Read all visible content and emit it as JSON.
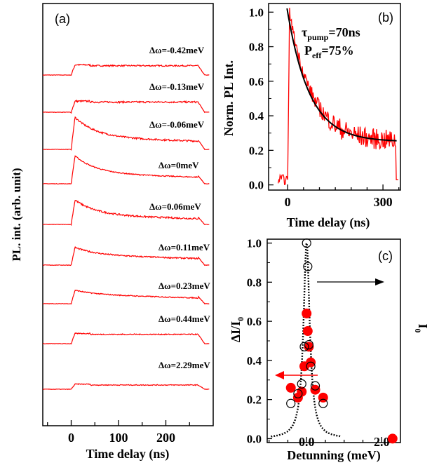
{
  "colors": {
    "trace": "#ff0000",
    "fit": "#000000",
    "axis": "#000000",
    "marker_fill": "#ff0000"
  },
  "chart_data": [
    {
      "panel_label": "(a)",
      "type": "line",
      "xlabel": "Time delay (ns)",
      "ylabel": "PL. int. (arb. unit)",
      "xlim": [
        -60,
        300
      ],
      "xticks": [
        0,
        100,
        200
      ],
      "xticklabels": [
        "0",
        "100",
        "200"
      ],
      "series": [
        {
          "label": "Δω=-0.42meV",
          "shape": "flat",
          "amp": 0.55,
          "noise": 0.08
        },
        {
          "label": "Δω=-0.13meV",
          "shape": "flat",
          "amp": 0.6,
          "noise": 0.1
        },
        {
          "label": "Δω=-0.06meV",
          "shape": "peak",
          "amp": 0.7,
          "peak": 1.9,
          "noise": 0.1
        },
        {
          "label": "Δω=0meV",
          "shape": "peak",
          "amp": 0.6,
          "peak": 1.65,
          "noise": 0.06
        },
        {
          "label": "Δω=0.06meV",
          "shape": "peak",
          "amp": 0.55,
          "peak": 1.45,
          "noise": 0.1
        },
        {
          "label": "Δω=0.11meV",
          "shape": "peak",
          "amp": 0.6,
          "peak": 1.05,
          "noise": 0.08
        },
        {
          "label": "Δω=0.23meV",
          "shape": "peak",
          "amp": 0.55,
          "peak": 0.8,
          "noise": 0.06
        },
        {
          "label": "Δω=0.44meV",
          "shape": "flat",
          "amp": 0.55,
          "noise": 0.06
        },
        {
          "label": "Δω=2.29meV",
          "shape": "flat",
          "amp": 0.25,
          "noise": 0.05
        }
      ]
    },
    {
      "panel_label": "(b)",
      "type": "line",
      "xlabel": "Time delay (ns)",
      "ylabel": "Norm. PL Int.",
      "xlim": [
        -60,
        355
      ],
      "ylim": [
        -0.03,
        1.05
      ],
      "xticks": [
        0,
        300
      ],
      "xticklabels": [
        "0",
        "300"
      ],
      "yticks": [
        0.0,
        0.2,
        0.4,
        0.6,
        0.8,
        1.0
      ],
      "yticklabels": [
        "0.0",
        "0.2",
        "0.4",
        "0.6",
        "0.8",
        "1.0"
      ],
      "annotation_tau": "τ",
      "annotation_tau_sub": "pump",
      "annotation_tau_val": "=70ns",
      "annotation_p": "P",
      "annotation_p_sub": "eff",
      "annotation_p_val": "=75%",
      "fit": {
        "offset": 0.25,
        "amp": 0.75,
        "tau_ns": 70
      },
      "trace": {
        "start_ns": 0,
        "end_ns": 340,
        "baseline": 0.03
      }
    },
    {
      "panel_label": "(c)",
      "type": "scatter",
      "xlabel": "Detunning (meV)",
      "ylabel": "ΔI/I",
      "ylabel_sub": "0",
      "right_ylabel": "I",
      "right_ylabel_sub": "0",
      "xlim": [
        -1.05,
        2.5
      ],
      "ylim": [
        -0.02,
        1.02
      ],
      "xticks": [
        0.0,
        2.0
      ],
      "xticklabels": [
        "0.0",
        "2.0"
      ],
      "yticks": [
        0.0,
        0.2,
        0.4,
        0.6,
        0.8,
        1.0
      ],
      "yticklabels": [
        "0.0",
        "0.2",
        "0.4",
        "0.6",
        "0.8",
        "1.0"
      ],
      "lorentz_width_meV": 0.1,
      "filled_points": [
        {
          "x": -0.42,
          "y": 0.26
        },
        {
          "x": -0.23,
          "y": 0.21
        },
        {
          "x": -0.13,
          "y": 0.24
        },
        {
          "x": -0.06,
          "y": 0.37
        },
        {
          "x": 0.0,
          "y": 0.64
        },
        {
          "x": 0.03,
          "y": 0.55
        },
        {
          "x": 0.06,
          "y": 0.47
        },
        {
          "x": 0.11,
          "y": 0.39
        },
        {
          "x": 0.23,
          "y": 0.25
        },
        {
          "x": 0.44,
          "y": 0.21
        },
        {
          "x": 2.29,
          "y": 0.0
        }
      ],
      "open_points": [
        {
          "x": -0.42,
          "y": 0.18
        },
        {
          "x": -0.23,
          "y": 0.23
        },
        {
          "x": -0.13,
          "y": 0.28
        },
        {
          "x": -0.06,
          "y": 0.47
        },
        {
          "x": 0.0,
          "y": 1.0
        },
        {
          "x": 0.03,
          "y": 0.88
        },
        {
          "x": 0.06,
          "y": 0.48
        },
        {
          "x": 0.11,
          "y": 0.37
        },
        {
          "x": 0.23,
          "y": 0.27
        },
        {
          "x": 0.44,
          "y": 0.18
        }
      ]
    }
  ]
}
